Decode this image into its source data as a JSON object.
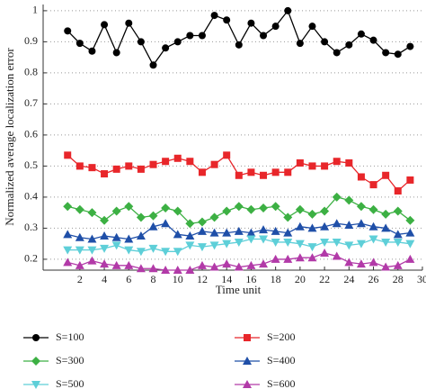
{
  "chart_data": {
    "type": "line",
    "xlabel": "Time unit",
    "ylabel": "Normalized average localization error",
    "x": [
      1,
      2,
      3,
      4,
      5,
      6,
      7,
      8,
      9,
      10,
      11,
      12,
      13,
      14,
      15,
      16,
      17,
      18,
      19,
      20,
      21,
      22,
      23,
      24,
      25,
      26,
      27,
      28,
      29
    ],
    "xlim": [
      -1,
      30
    ],
    "xticks": [
      2,
      4,
      6,
      8,
      10,
      12,
      14,
      16,
      18,
      20,
      22,
      24,
      26,
      28,
      30
    ],
    "ylim": [
      0.165,
      1.02
    ],
    "yticks": [
      0.2,
      0.3,
      0.4,
      0.5,
      0.6,
      0.7,
      0.8,
      0.9,
      1
    ],
    "grid": true,
    "legend": "bottom",
    "series": [
      {
        "name": "S=100",
        "color": "#000000",
        "marker": "circle",
        "values": [
          0.935,
          0.895,
          0.87,
          0.955,
          0.865,
          0.96,
          0.9,
          0.825,
          0.88,
          0.9,
          0.92,
          0.92,
          0.985,
          0.97,
          0.89,
          0.96,
          0.92,
          0.95,
          1.0,
          0.895,
          0.95,
          0.9,
          0.865,
          0.89,
          0.925,
          0.905,
          0.865,
          0.86,
          0.885
        ]
      },
      {
        "name": "S=200",
        "color": "#e8262a",
        "marker": "square",
        "values": [
          0.535,
          0.5,
          0.495,
          0.475,
          0.49,
          0.5,
          0.49,
          0.505,
          0.515,
          0.525,
          0.515,
          0.48,
          0.505,
          0.535,
          0.47,
          0.48,
          0.47,
          0.48,
          0.48,
          0.51,
          0.5,
          0.5,
          0.515,
          0.51,
          0.465,
          0.44,
          0.47,
          0.42,
          0.455
        ]
      },
      {
        "name": "S=300",
        "color": "#3cb043",
        "marker": "diamond",
        "values": [
          0.37,
          0.36,
          0.35,
          0.325,
          0.355,
          0.37,
          0.335,
          0.34,
          0.365,
          0.355,
          0.315,
          0.32,
          0.335,
          0.355,
          0.37,
          0.36,
          0.365,
          0.37,
          0.335,
          0.36,
          0.345,
          0.355,
          0.4,
          0.39,
          0.37,
          0.36,
          0.345,
          0.355,
          0.325
        ]
      },
      {
        "name": "S=400",
        "color": "#1f4fa8",
        "marker": "triangle",
        "values": [
          0.28,
          0.27,
          0.265,
          0.275,
          0.27,
          0.265,
          0.275,
          0.305,
          0.315,
          0.28,
          0.275,
          0.29,
          0.285,
          0.285,
          0.29,
          0.285,
          0.295,
          0.29,
          0.285,
          0.305,
          0.3,
          0.305,
          0.315,
          0.31,
          0.315,
          0.305,
          0.3,
          0.28,
          0.285
        ]
      },
      {
        "name": "S=500",
        "color": "#5ecfd8",
        "marker": "triangle-down",
        "values": [
          0.23,
          0.23,
          0.23,
          0.235,
          0.245,
          0.23,
          0.225,
          0.235,
          0.225,
          0.225,
          0.245,
          0.24,
          0.245,
          0.25,
          0.255,
          0.265,
          0.265,
          0.255,
          0.255,
          0.25,
          0.24,
          0.255,
          0.255,
          0.245,
          0.25,
          0.265,
          0.255,
          0.255,
          0.25
        ]
      },
      {
        "name": "S=600",
        "color": "#b23aa8",
        "marker": "triangle",
        "values": [
          0.19,
          0.18,
          0.195,
          0.185,
          0.18,
          0.18,
          0.17,
          0.17,
          0.165,
          0.165,
          0.165,
          0.18,
          0.175,
          0.185,
          0.175,
          0.18,
          0.185,
          0.2,
          0.2,
          0.205,
          0.205,
          0.22,
          0.21,
          0.19,
          0.185,
          0.19,
          0.175,
          0.18,
          0.2
        ]
      }
    ]
  }
}
